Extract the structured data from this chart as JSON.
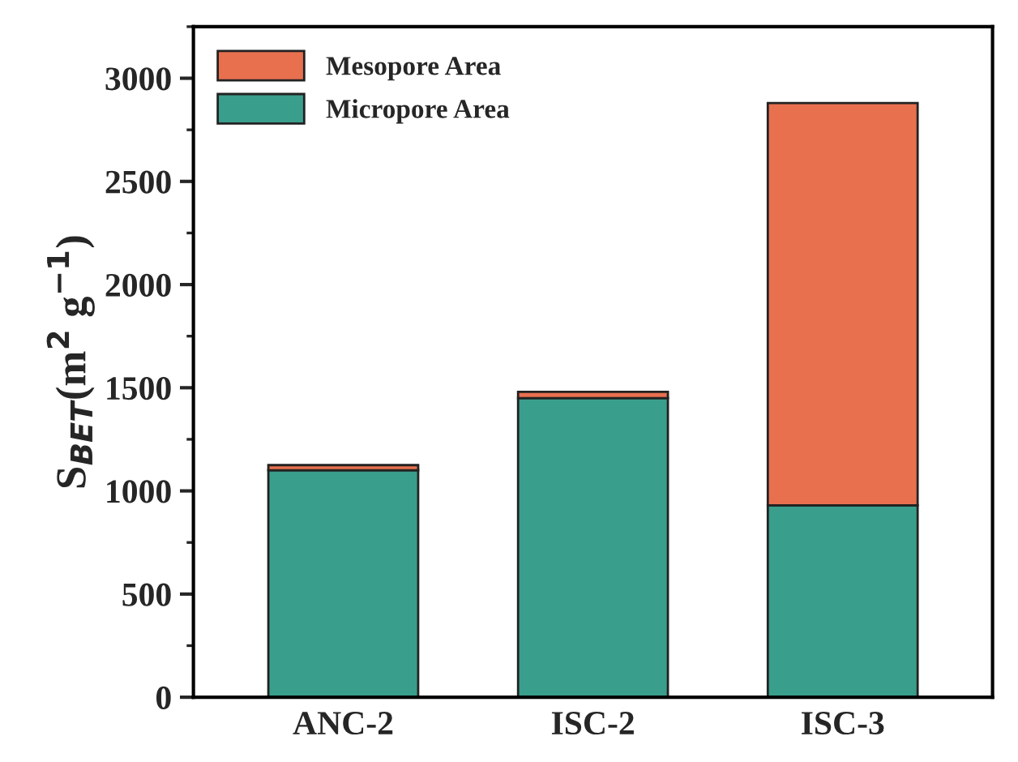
{
  "chart_data": {
    "type": "bar",
    "stacked": true,
    "ylabel": "S$_{BET}$(m$^{2}$ g$^{−1}$)",
    "categories": [
      "ANC-2",
      "ISC-2",
      "ISC-3"
    ],
    "series": [
      {
        "name": "Micropore Area",
        "color": "#3a9e8c",
        "values": [
          1100,
          1450,
          930
        ]
      },
      {
        "name": "Mesopore Area",
        "color": "#e8704f",
        "values": [
          25,
          30,
          1950
        ]
      }
    ],
    "ylim": [
      0,
      3250
    ],
    "yticks": [
      0,
      500,
      1000,
      1500,
      2000,
      2500,
      3000
    ],
    "legend": "top left",
    "grid": false
  }
}
